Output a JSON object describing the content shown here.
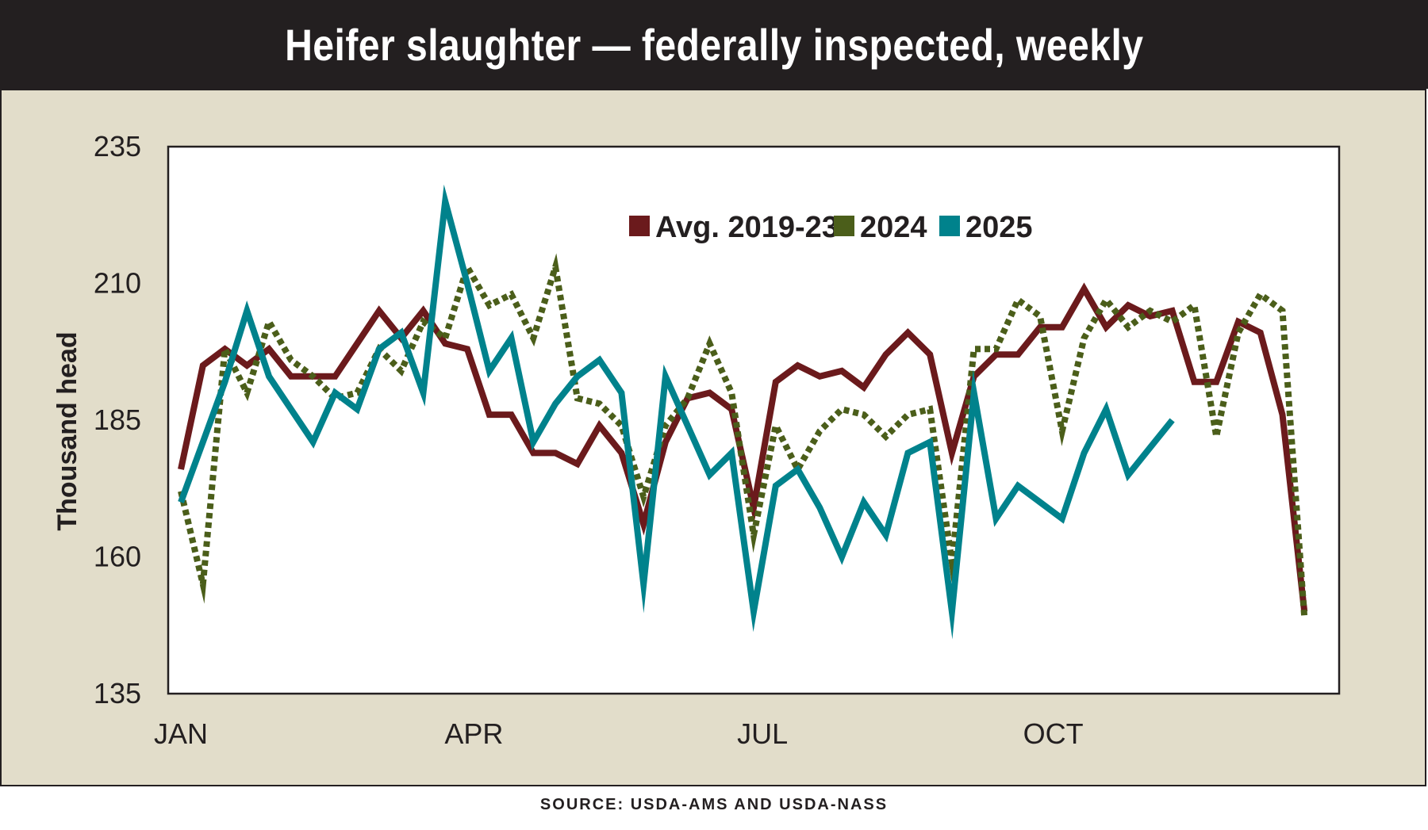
{
  "title": "Heifer slaughter — federally inspected, weekly",
  "source": "SOURCE: USDA-AMS AND USDA-NASS",
  "chart_data": {
    "type": "line",
    "title": "Heifer slaughter — federally inspected, weekly",
    "ylabel": "Thousand head",
    "xlabel": "",
    "ylim": [
      135,
      235
    ],
    "yticks": [
      135,
      160,
      185,
      210,
      235
    ],
    "xlim": [
      1,
      53
    ],
    "xticks": [
      {
        "label": "JAN",
        "week": 1
      },
      {
        "label": "APR",
        "week": 14.3
      },
      {
        "label": "JUL",
        "week": 27.4
      },
      {
        "label": "OCT",
        "week": 40.6
      }
    ],
    "grid": false,
    "legend_position": "top-center",
    "series": [
      {
        "name": "Avg. 2019-23",
        "color": "#6b1a1c",
        "style": "solid",
        "week_start": 1,
        "values": [
          176,
          195,
          198,
          195,
          198,
          193,
          193,
          193,
          199,
          205,
          200,
          205,
          199,
          198,
          186,
          186,
          179,
          179,
          177,
          184,
          179,
          166,
          181,
          189,
          190,
          187,
          169,
          192,
          195,
          193,
          194,
          191,
          197,
          201,
          197,
          179,
          193,
          197,
          197,
          202,
          202,
          209,
          202,
          206,
          204,
          205,
          192,
          192,
          203,
          201,
          186,
          150
        ]
      },
      {
        "name": "2024",
        "color": "#4b5e1a",
        "style": "dotted",
        "week_start": 1,
        "values": [
          172,
          155,
          198,
          190,
          203,
          196,
          193,
          189,
          190,
          198,
          194,
          203,
          200,
          213,
          206,
          208,
          200,
          213,
          189,
          188,
          184,
          171,
          184,
          189,
          199,
          190,
          164,
          184,
          176,
          183,
          187,
          186,
          182,
          186,
          187,
          159,
          198,
          198,
          207,
          204,
          183,
          200,
          207,
          202,
          205,
          203,
          206,
          182,
          201,
          208,
          205,
          149
        ]
      },
      {
        "name": "2025",
        "color": "#00828c",
        "style": "solid",
        "week_start": 1,
        "values": [
          170,
          181,
          192,
          205,
          193,
          187,
          181,
          190,
          187,
          198,
          201,
          190,
          225,
          210,
          194,
          200,
          181,
          188,
          193,
          196,
          190,
          155,
          193,
          184,
          175,
          179,
          150,
          173,
          176,
          169,
          160,
          170,
          164,
          179,
          181,
          150,
          190,
          167,
          173,
          170,
          167,
          179,
          187,
          175,
          180,
          185
        ]
      }
    ]
  }
}
